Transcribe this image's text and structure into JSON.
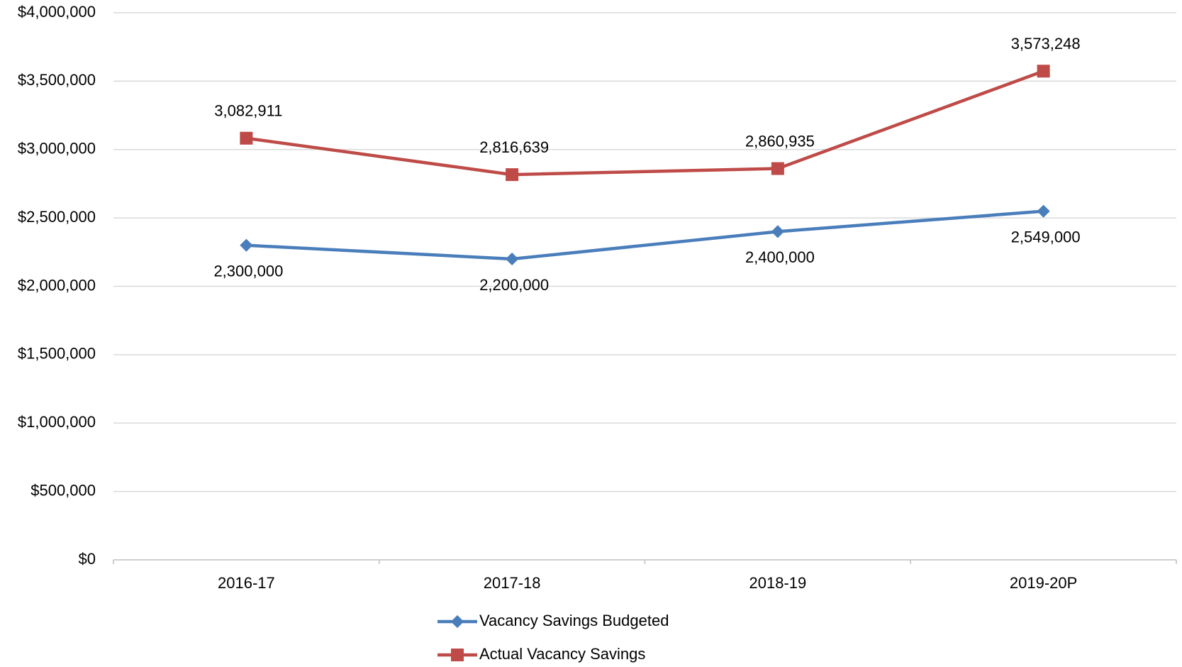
{
  "chart_data": {
    "type": "line",
    "categories": [
      "2016-17",
      "2017-18",
      "2018-19",
      "2019-20P"
    ],
    "series": [
      {
        "name": "Vacancy Savings Budgeted",
        "color": "#4a7ebb",
        "marker": "diamond",
        "values": [
          2300000,
          2200000,
          2400000,
          2549000
        ],
        "value_labels": [
          "2,300,000",
          "2,200,000",
          "2,400,000",
          "2,549,000"
        ],
        "label_position": "below"
      },
      {
        "name": "Actual Vacancy Savings",
        "color": "#be4b48",
        "marker": "square",
        "values": [
          3082911,
          2816639,
          2860935,
          3573248
        ],
        "value_labels": [
          "3,082,911",
          "2,816,639",
          "2,860,935",
          "3,573,248"
        ],
        "label_position": "above"
      }
    ],
    "ylim": [
      0,
      4000000
    ],
    "yticks": [
      {
        "value": 0,
        "label": "$0"
      },
      {
        "value": 500000,
        "label": "$500,000"
      },
      {
        "value": 1000000,
        "label": "$1,000,000"
      },
      {
        "value": 1500000,
        "label": "$1,500,000"
      },
      {
        "value": 2000000,
        "label": "$2,000,000"
      },
      {
        "value": 2500000,
        "label": "$2,500,000"
      },
      {
        "value": 3000000,
        "label": "$3,000,000"
      },
      {
        "value": 3500000,
        "label": "$3,500,000"
      },
      {
        "value": 4000000,
        "label": "$4,000,000"
      }
    ],
    "grid": true,
    "legend": "bottom"
  }
}
